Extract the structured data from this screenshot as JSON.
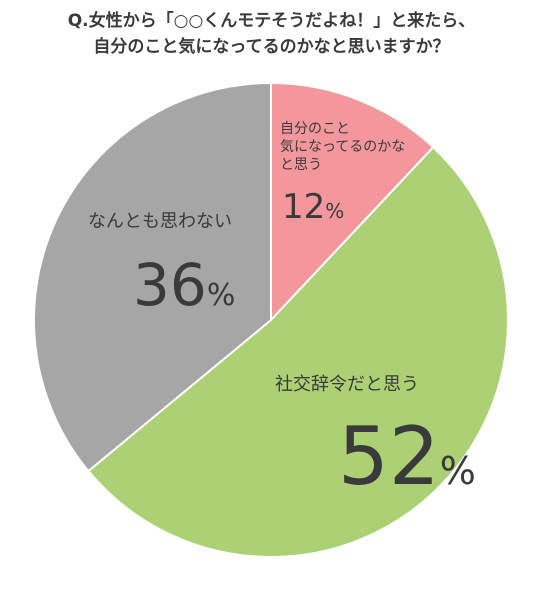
{
  "title_lines": [
    "Q.女性から「○○くんモテそうだよね！」と来たら、",
    "自分のこと気になってるのかなと思いますか？"
  ],
  "chart_data": {
    "type": "pie",
    "title": "Q.女性から「○○くんモテそうだよね！」と来たら、自分のこと気になってるのかなと思いますか？",
    "slices": [
      {
        "label": "自分のこと気になってるのかなと思う",
        "label_lines": [
          "自分のこと",
          "気になってるのかな",
          "と思う"
        ],
        "value": 12,
        "number": "12",
        "unit": "%",
        "color": "#f4979c"
      },
      {
        "label": "社交辞令だと思う",
        "label_lines": [
          "社交辞令だと思う"
        ],
        "value": 52,
        "number": "52",
        "unit": "%",
        "color": "#acd174"
      },
      {
        "label": "なんとも思わない",
        "label_lines": [
          "なんとも思わない"
        ],
        "value": 36,
        "number": "36",
        "unit": "%",
        "color": "#a6a6a6"
      }
    ],
    "start_angle": "12 o'clock",
    "direction": "clockwise",
    "slice_border_color": "#ffffff"
  }
}
